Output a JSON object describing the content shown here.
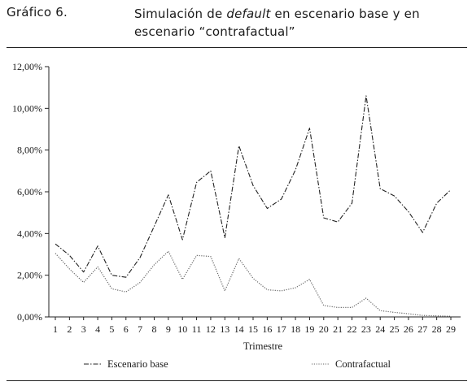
{
  "figure": {
    "number": "Gráfico 6.",
    "title_pre": "Simulación de ",
    "title_em": "default",
    "title_post": " en escenario base y en escenario “contrafactual”"
  },
  "chart_data": {
    "type": "line",
    "xlabel": "Trimestre",
    "ylabel": "",
    "x": [
      1,
      2,
      3,
      4,
      5,
      6,
      7,
      8,
      9,
      10,
      11,
      12,
      13,
      14,
      15,
      16,
      17,
      18,
      19,
      20,
      21,
      22,
      23,
      24,
      25,
      26,
      27,
      28,
      29
    ],
    "ylim": [
      0,
      12
    ],
    "yticks": [
      0,
      2,
      4,
      6,
      8,
      10,
      12
    ],
    "ytick_labels": [
      "0,00%",
      "2,00%",
      "4,00%",
      "6,00%",
      "8,00%",
      "10,00%",
      "12,00%"
    ],
    "grid": false,
    "legend_position": "bottom",
    "series": [
      {
        "name": "Escenario base",
        "color": "#222222",
        "style": "dash-dot",
        "values": [
          3.5,
          2.95,
          2.15,
          3.4,
          2.0,
          1.9,
          2.85,
          4.35,
          5.85,
          3.7,
          6.45,
          7.0,
          3.8,
          8.2,
          6.3,
          5.2,
          5.65,
          7.05,
          9.05,
          4.75,
          4.55,
          5.45,
          10.6,
          6.15,
          5.8,
          5.05,
          4.05,
          5.45,
          6.1
        ]
      },
      {
        "name": "Contrafactual",
        "color": "#666666",
        "style": "dotted",
        "values": [
          3.05,
          2.3,
          1.65,
          2.4,
          1.35,
          1.2,
          1.65,
          2.5,
          3.15,
          1.8,
          2.95,
          2.9,
          1.25,
          2.8,
          1.85,
          1.3,
          1.25,
          1.4,
          1.8,
          0.55,
          0.45,
          0.45,
          0.9,
          0.3,
          0.22,
          0.15,
          0.07,
          0.05,
          0.03
        ]
      }
    ]
  }
}
